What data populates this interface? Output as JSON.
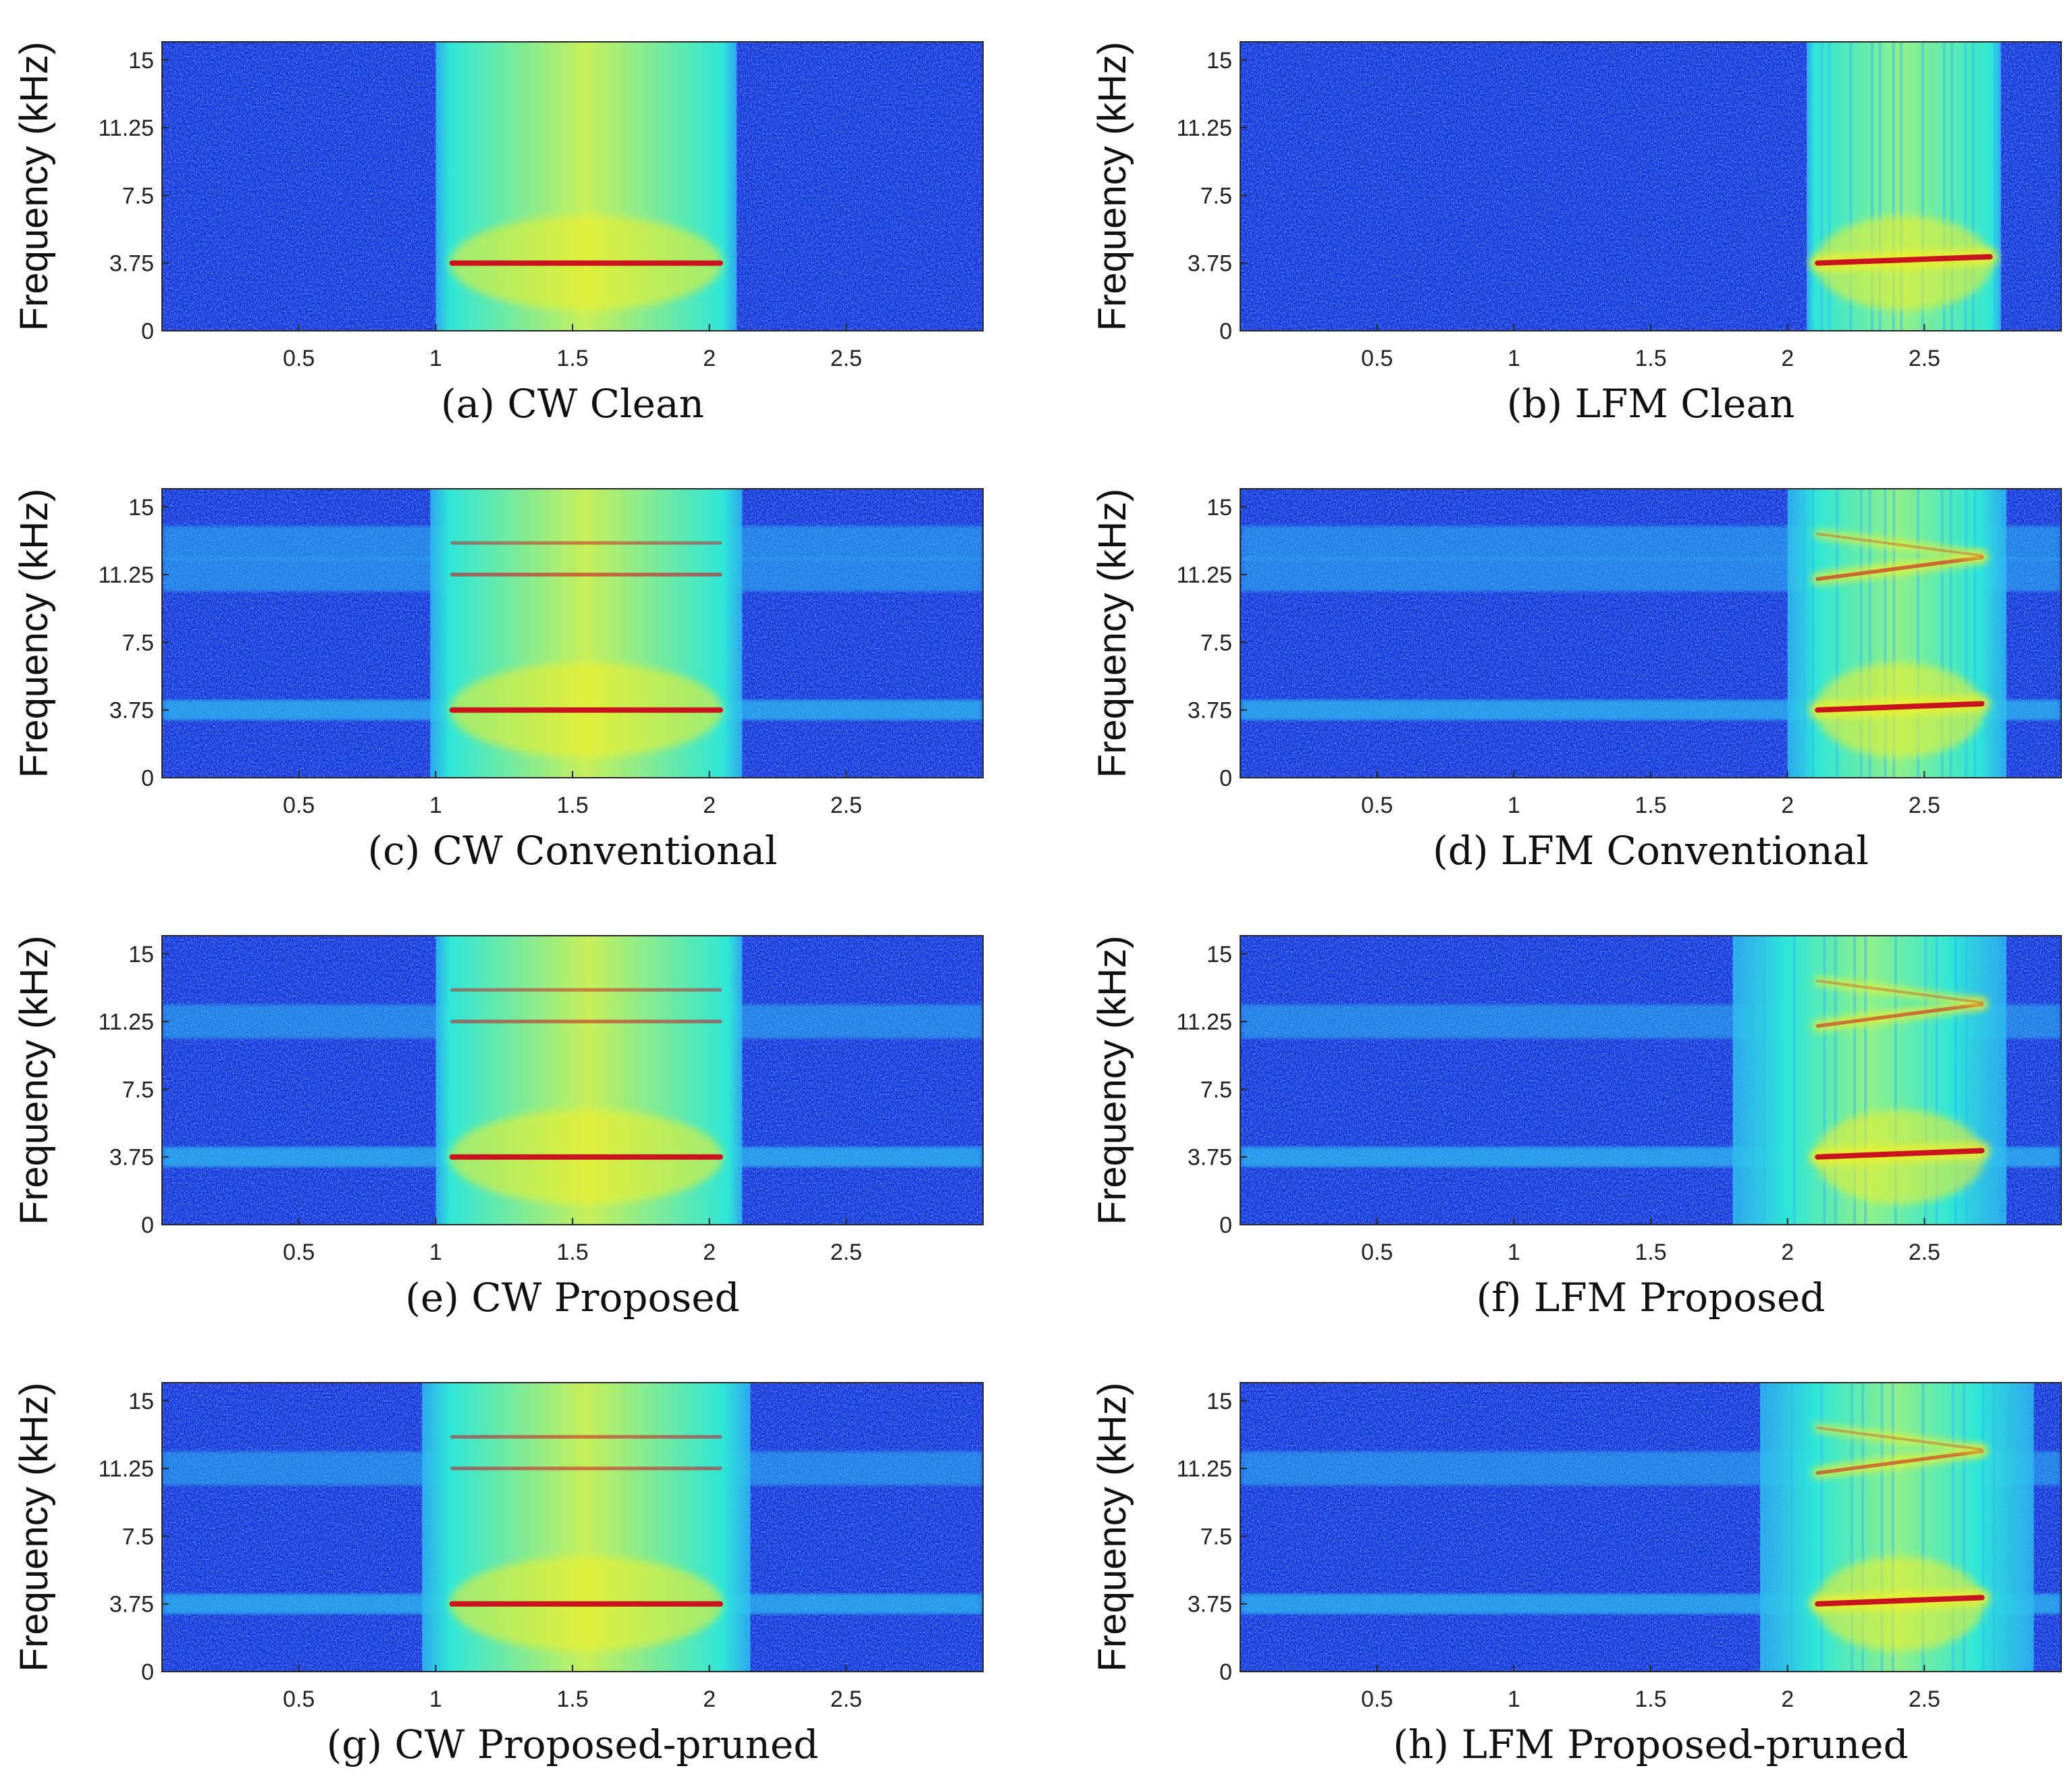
{
  "colors": {
    "background_low": "#1431d8",
    "background_noise": "#2a5ef0",
    "band_cyan": "#2fb8f0",
    "signal_mid": "#2ee6d8",
    "signal_high": "#f5f028",
    "signal_peak": "#c8141e"
  },
  "chart_data": [
    {
      "id": "a",
      "type": "heatmap",
      "signal": "CW",
      "method": "Clean",
      "title": "(a) CW Clean",
      "xlabel": "",
      "ylabel": "Frequency (kHz)",
      "xlim": [
        0,
        3
      ],
      "ylim": [
        0,
        16
      ],
      "xticks": [
        0.5,
        1,
        1.5,
        2,
        2.5
      ],
      "xtick_labels": [
        "0.5",
        "1",
        "1.5",
        "2",
        "2.5"
      ],
      "yticks": [
        0,
        3.75,
        7.5,
        11.25,
        15
      ],
      "ytick_labels": [
        "0",
        "3.75",
        "7.5",
        "11.25",
        "15"
      ],
      "pulse_start_s": 1.05,
      "pulse_end_s": 2.05,
      "halo_start_s": 1.0,
      "halo_end_s": 2.1,
      "tones_khz": [
        {
          "f_start": 3.75,
          "f_end": 3.75,
          "strength": 1.0
        }
      ],
      "noise_bands_khz": []
    },
    {
      "id": "b",
      "type": "heatmap",
      "signal": "LFM",
      "method": "Clean",
      "title": "(b) LFM Clean",
      "xlabel": "",
      "ylabel": "Frequency (kHz)",
      "xlim": [
        0,
        3
      ],
      "ylim": [
        0,
        16
      ],
      "xticks": [
        0.5,
        1,
        1.5,
        2,
        2.5
      ],
      "xtick_labels": [
        "0.5",
        "1",
        "1.5",
        "2",
        "2.5"
      ],
      "yticks": [
        0,
        3.75,
        7.5,
        11.25,
        15
      ],
      "ytick_labels": [
        "0",
        "3.75",
        "7.5",
        "11.25",
        "15"
      ],
      "pulse_start_s": 2.1,
      "pulse_end_s": 2.75,
      "halo_start_s": 2.07,
      "halo_end_s": 2.78,
      "tones_khz": [
        {
          "f_start": 3.75,
          "f_end": 4.1,
          "strength": 1.0
        }
      ],
      "noise_bands_khz": []
    },
    {
      "id": "c",
      "type": "heatmap",
      "signal": "CW",
      "method": "Conventional",
      "title": "(c) CW Conventional",
      "xlabel": "",
      "ylabel": "Frequency (kHz)",
      "xlim": [
        0,
        3
      ],
      "ylim": [
        0,
        16
      ],
      "xticks": [
        0.5,
        1,
        1.5,
        2,
        2.5
      ],
      "xtick_labels": [
        "0.5",
        "1",
        "1.5",
        "2",
        "2.5"
      ],
      "yticks": [
        0,
        3.75,
        7.5,
        11.25,
        15
      ],
      "ytick_labels": [
        "0",
        "3.75",
        "7.5",
        "11.25",
        "15"
      ],
      "pulse_start_s": 1.05,
      "pulse_end_s": 2.05,
      "halo_start_s": 0.98,
      "halo_end_s": 2.12,
      "tones_khz": [
        {
          "f_start": 3.75,
          "f_end": 3.75,
          "strength": 1.0
        },
        {
          "f_start": 11.25,
          "f_end": 11.25,
          "strength": 0.6
        },
        {
          "f_start": 13.0,
          "f_end": 13.0,
          "strength": 0.5
        }
      ],
      "noise_bands_khz": [
        3.75,
        11.25,
        13.0
      ]
    },
    {
      "id": "d",
      "type": "heatmap",
      "signal": "LFM",
      "method": "Conventional",
      "title": "(d) LFM Conventional",
      "xlabel": "",
      "ylabel": "Frequency (kHz)",
      "xlim": [
        0,
        3
      ],
      "ylim": [
        0,
        16
      ],
      "xticks": [
        0.5,
        1,
        1.5,
        2,
        2.5
      ],
      "xtick_labels": [
        "0.5",
        "1",
        "1.5",
        "2",
        "2.5"
      ],
      "yticks": [
        0,
        3.75,
        7.5,
        11.25,
        15
      ],
      "ytick_labels": [
        "0",
        "3.75",
        "7.5",
        "11.25",
        "15"
      ],
      "pulse_start_s": 2.1,
      "pulse_end_s": 2.72,
      "halo_start_s": 2.0,
      "halo_end_s": 2.8,
      "tones_khz": [
        {
          "f_start": 3.75,
          "f_end": 4.1,
          "strength": 1.0
        },
        {
          "f_start": 11.0,
          "f_end": 12.2,
          "strength": 0.6
        },
        {
          "f_start": 13.5,
          "f_end": 12.3,
          "strength": 0.3
        }
      ],
      "noise_bands_khz": [
        3.75,
        11.25,
        13.0
      ]
    },
    {
      "id": "e",
      "type": "heatmap",
      "signal": "CW",
      "method": "Proposed",
      "title": "(e) CW Proposed",
      "xlabel": "",
      "ylabel": "Frequency (kHz)",
      "xlim": [
        0,
        3
      ],
      "ylim": [
        0,
        16
      ],
      "xticks": [
        0.5,
        1,
        1.5,
        2,
        2.5
      ],
      "xtick_labels": [
        "0.5",
        "1",
        "1.5",
        "2",
        "2.5"
      ],
      "yticks": [
        0,
        3.75,
        7.5,
        11.25,
        15
      ],
      "ytick_labels": [
        "0",
        "3.75",
        "7.5",
        "11.25",
        "15"
      ],
      "pulse_start_s": 1.05,
      "pulse_end_s": 2.05,
      "halo_start_s": 1.0,
      "halo_end_s": 2.12,
      "tones_khz": [
        {
          "f_start": 3.75,
          "f_end": 3.75,
          "strength": 1.0
        },
        {
          "f_start": 11.25,
          "f_end": 11.25,
          "strength": 0.55
        },
        {
          "f_start": 13.0,
          "f_end": 13.0,
          "strength": 0.5
        }
      ],
      "noise_bands_khz": [
        3.75,
        11.25
      ]
    },
    {
      "id": "f",
      "type": "heatmap",
      "signal": "LFM",
      "method": "Proposed",
      "title": "(f) LFM Proposed",
      "xlabel": "",
      "ylabel": "Frequency (kHz)",
      "xlim": [
        0,
        3
      ],
      "ylim": [
        0,
        16
      ],
      "xticks": [
        0.5,
        1,
        1.5,
        2,
        2.5
      ],
      "xtick_labels": [
        "0.5",
        "1",
        "1.5",
        "2",
        "2.5"
      ],
      "yticks": [
        0,
        3.75,
        7.5,
        11.25,
        15
      ],
      "ytick_labels": [
        "0",
        "3.75",
        "7.5",
        "11.25",
        "15"
      ],
      "pulse_start_s": 2.1,
      "pulse_end_s": 2.72,
      "halo_start_s": 1.8,
      "halo_end_s": 2.8,
      "tones_khz": [
        {
          "f_start": 3.75,
          "f_end": 4.1,
          "strength": 1.0
        },
        {
          "f_start": 11.0,
          "f_end": 12.2,
          "strength": 0.55
        },
        {
          "f_start": 13.5,
          "f_end": 12.3,
          "strength": 0.3
        }
      ],
      "noise_bands_khz": [
        3.75,
        11.25
      ]
    },
    {
      "id": "g",
      "type": "heatmap",
      "signal": "CW",
      "method": "Proposed-pruned",
      "title": "(g) CW Proposed-pruned",
      "xlabel": "",
      "ylabel": "Frequency (kHz)",
      "xlim": [
        0,
        3
      ],
      "ylim": [
        0,
        16
      ],
      "xticks": [
        0.5,
        1,
        1.5,
        2,
        2.5
      ],
      "xtick_labels": [
        "0.5",
        "1",
        "1.5",
        "2",
        "2.5"
      ],
      "yticks": [
        0,
        3.75,
        7.5,
        11.25,
        15
      ],
      "ytick_labels": [
        "0",
        "3.75",
        "7.5",
        "11.25",
        "15"
      ],
      "pulse_start_s": 1.05,
      "pulse_end_s": 2.05,
      "halo_start_s": 0.95,
      "halo_end_s": 2.15,
      "tones_khz": [
        {
          "f_start": 3.75,
          "f_end": 3.75,
          "strength": 1.0
        },
        {
          "f_start": 11.25,
          "f_end": 11.25,
          "strength": 0.55
        },
        {
          "f_start": 13.0,
          "f_end": 13.0,
          "strength": 0.55
        }
      ],
      "noise_bands_khz": [
        3.75,
        11.25
      ]
    },
    {
      "id": "h",
      "type": "heatmap",
      "signal": "LFM",
      "method": "Proposed-pruned",
      "title": "(h) LFM Proposed-pruned",
      "xlabel": "",
      "ylabel": "Frequency (kHz)",
      "xlim": [
        0,
        3
      ],
      "ylim": [
        0,
        16
      ],
      "xticks": [
        0.5,
        1,
        1.5,
        2,
        2.5
      ],
      "xtick_labels": [
        "0.5",
        "1",
        "1.5",
        "2",
        "2.5"
      ],
      "yticks": [
        0,
        3.75,
        7.5,
        11.25,
        15
      ],
      "ytick_labels": [
        "0",
        "3.75",
        "7.5",
        "11.25",
        "15"
      ],
      "pulse_start_s": 2.1,
      "pulse_end_s": 2.72,
      "halo_start_s": 1.9,
      "halo_end_s": 2.9,
      "tones_khz": [
        {
          "f_start": 3.75,
          "f_end": 4.1,
          "strength": 1.0
        },
        {
          "f_start": 11.0,
          "f_end": 12.2,
          "strength": 0.55
        },
        {
          "f_start": 13.5,
          "f_end": 12.3,
          "strength": 0.3
        }
      ],
      "noise_bands_khz": [
        3.75,
        11.25
      ]
    }
  ]
}
